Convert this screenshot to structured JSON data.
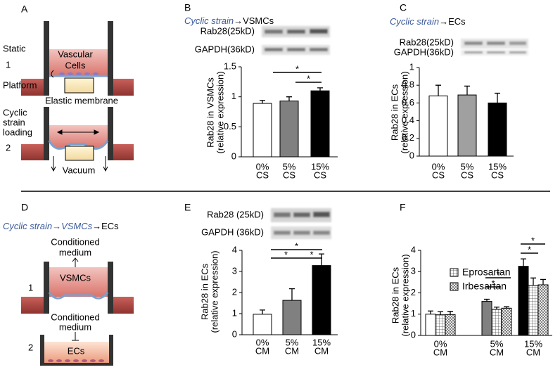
{
  "diagram": {
    "label_a": "A",
    "static": "Static",
    "step_1": "1",
    "vascular": "Vascular",
    "cells": "Cells",
    "platform": "Platform",
    "membrane": "Elastic membrane",
    "cyclic": "Cyclic",
    "strain": "strain",
    "loading": "loading",
    "step_2": "2",
    "vacuum": "Vacuum",
    "label_d": "D",
    "title_d": [
      "Cyclic strain→VSMCs",
      "→ECs"
    ],
    "cm_top": [
      "Conditioned",
      "medium"
    ],
    "d_step_1": "1",
    "vsmcs": "VSMCs",
    "cm_bottom": [
      "Conditioned",
      "medium"
    ],
    "d_step_2": "2",
    "ecs": "ECs"
  },
  "chart_data": [
    {
      "type": "bar",
      "label": "B",
      "title": [
        "Cyclic strain",
        "→VSMCs"
      ],
      "blot_labels": [
        "Rab28(25kD)",
        "GAPDH(36kD)"
      ],
      "ylabel": [
        "Rab28 in VSMCs",
        "(relative expression)"
      ],
      "categories": [
        [
          "0%",
          "CS"
        ],
        [
          "5%",
          "CS"
        ],
        [
          "15%",
          "CS"
        ]
      ],
      "values": [
        0.89,
        0.93,
        1.1
      ],
      "errors": [
        0.05,
        0.07,
        0.05
      ],
      "colors": [
        "#ffffff",
        "#808080",
        "#000000"
      ],
      "ylim": [
        0,
        1.5
      ],
      "yticks": [
        0,
        0.5,
        1,
        1.5
      ],
      "significance": [
        "*",
        "*"
      ]
    },
    {
      "type": "bar",
      "label": "C",
      "title": [
        "Cyclic strain",
        "→ECs"
      ],
      "blot_labels": [
        "Rab28(25kD)",
        "GAPDH(36kD)"
      ],
      "ylabel": [
        "Rab28 in ECs",
        "(relative expression)"
      ],
      "categories": [
        [
          "0%",
          "CS"
        ],
        [
          "5%",
          "CS"
        ],
        [
          "15%",
          "CS"
        ]
      ],
      "values": [
        0.68,
        0.69,
        0.6
      ],
      "errors": [
        0.12,
        0.1,
        0.11
      ],
      "colors": [
        "#ffffff",
        "#a0a0a0",
        "#000000"
      ],
      "ylim": [
        0,
        1
      ],
      "yticks": [
        0,
        0.2,
        0.4,
        0.6,
        0.8,
        1
      ],
      "significance": []
    },
    {
      "type": "bar",
      "label": "E",
      "blot_labels": [
        "Rab28 (25kD)",
        "GAPDH (36kD)"
      ],
      "ylabel": [
        "Rab28 in ECs",
        "(relative expression)"
      ],
      "categories": [
        [
          "0%",
          "CM"
        ],
        [
          "5%",
          "CM"
        ],
        [
          "15%",
          "CM"
        ]
      ],
      "values": [
        0.97,
        1.63,
        3.28
      ],
      "errors": [
        0.2,
        0.55,
        0.55
      ],
      "colors": [
        "#ffffff",
        "#808080",
        "#000000"
      ],
      "ylim": [
        0,
        4
      ],
      "yticks": [
        0,
        1,
        2,
        3,
        4
      ],
      "significance": [
        "*",
        "*",
        "*"
      ]
    },
    {
      "type": "grouped_bar",
      "label": "F",
      "ylabel": [
        "Rab28 in ECs",
        "(relative expression)"
      ],
      "categories": [
        [
          "0%",
          "CM"
        ],
        [
          "5%",
          "CM"
        ],
        [
          "15%",
          "CM"
        ]
      ],
      "series": [
        {
          "colors": [
            "#ffffff",
            "#808080",
            "#000000"
          ],
          "values": [
            1.0,
            1.6,
            3.25
          ],
          "errors": [
            0.15,
            0.1,
            0.35
          ]
        },
        {
          "name": "Eprosartan",
          "color": "#ffffff",
          "hatch": "grid",
          "values": [
            0.97,
            1.23,
            2.35
          ],
          "errors": [
            0.15,
            0.1,
            0.35
          ]
        },
        {
          "name": "Irbesartan",
          "color": "#ffffff",
          "hatch": "cross",
          "values": [
            0.98,
            1.28,
            2.38
          ],
          "errors": [
            0.15,
            0.07,
            0.25
          ]
        }
      ],
      "ylim": [
        0,
        4
      ],
      "yticks": [
        0,
        1,
        2,
        3,
        4
      ],
      "significance": [
        "*",
        "*",
        "*",
        "*"
      ]
    }
  ]
}
